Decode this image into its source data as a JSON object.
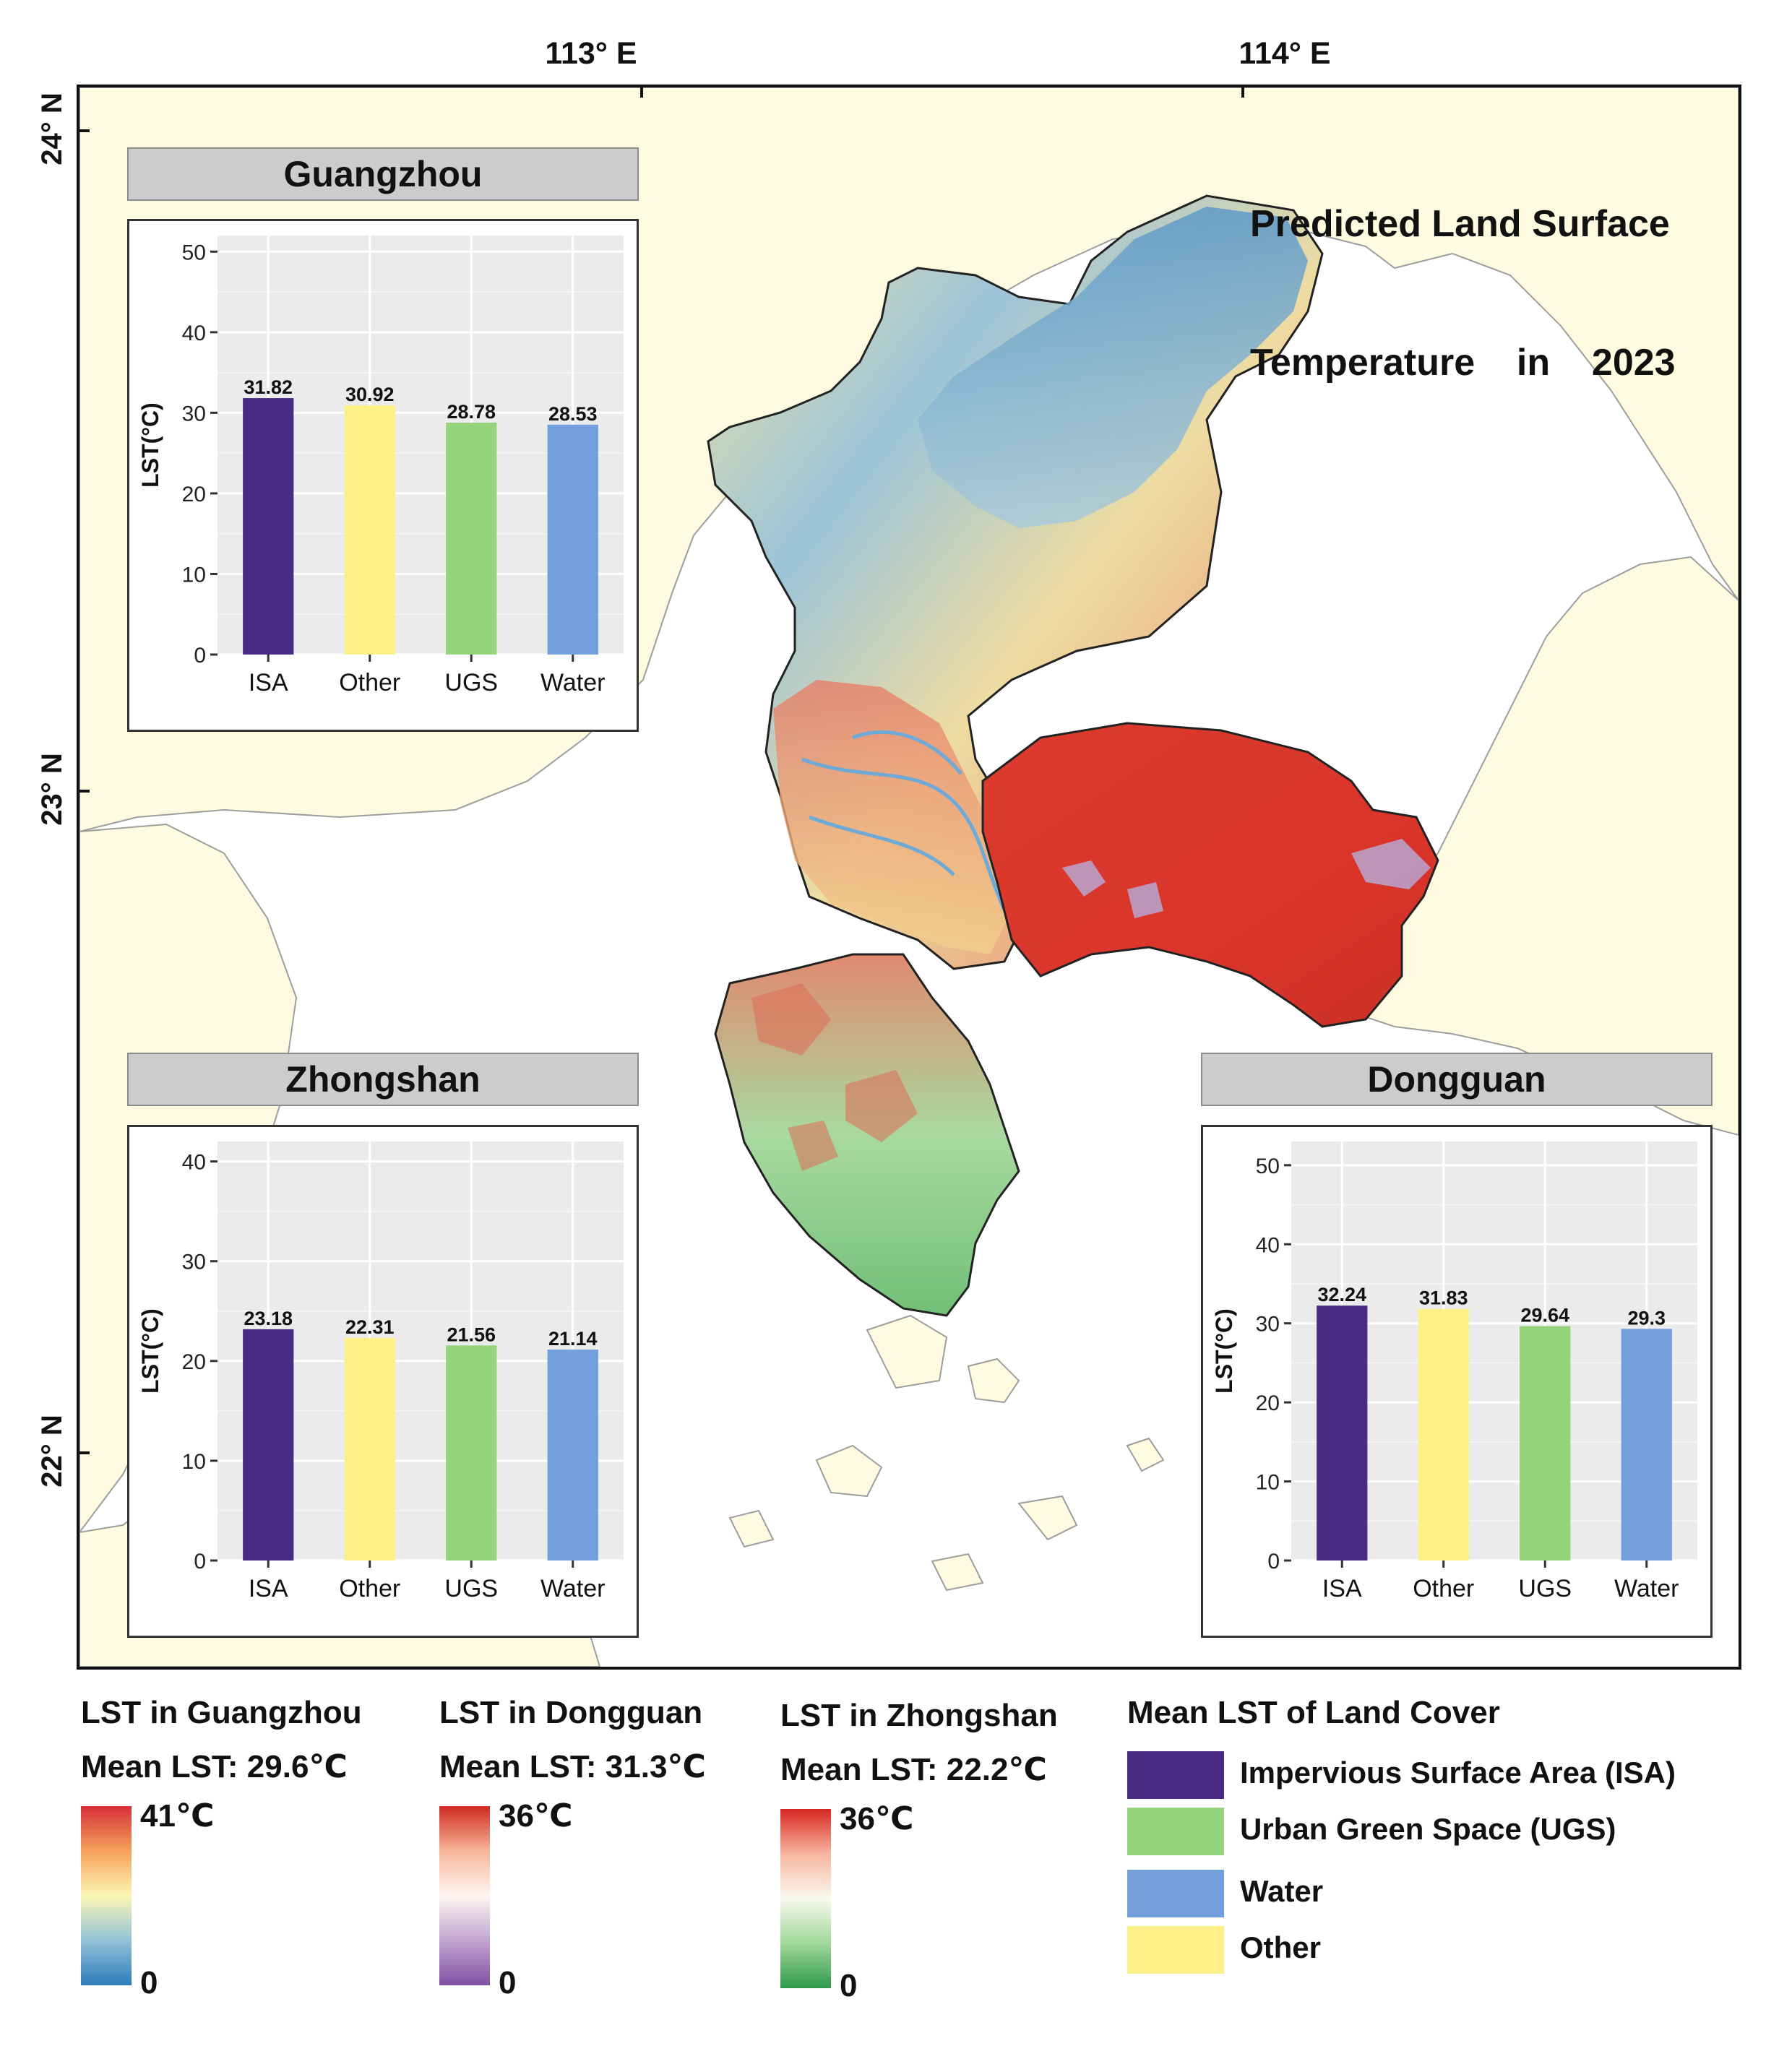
{
  "map": {
    "title_line1": "Predicted Land Surface",
    "title_line2": "Temperature    in    2023",
    "lon_labels": [
      "113° E",
      "114° E"
    ],
    "lat_labels": [
      "24° N",
      "23° N",
      "22° N"
    ],
    "colors": {
      "land": "#fffbe0",
      "sea": "#ffffff"
    }
  },
  "charts": [
    {
      "id": "guangzhou",
      "strip_title": "Guangzhou",
      "chart_data": {
        "type": "bar",
        "title": "Guangzhou",
        "categories": [
          "ISA",
          "Other",
          "UGS",
          "Water"
        ],
        "values": [
          31.82,
          30.92,
          28.78,
          28.53
        ],
        "value_labels": [
          "31.82",
          "30.92",
          "28.78",
          "28.53"
        ],
        "colors": [
          "#4b2a84",
          "#fdf088",
          "#96d47c",
          "#739fdc"
        ],
        "ylabel": "LST(°C)",
        "xlabel": "",
        "ylim": [
          0,
          52
        ],
        "yticks": [
          0,
          10,
          20,
          30,
          40,
          50
        ],
        "grid": true
      }
    },
    {
      "id": "zhongshan",
      "strip_title": "Zhongshan",
      "chart_data": {
        "type": "bar",
        "title": "Zhongshan",
        "categories": [
          "ISA",
          "Other",
          "UGS",
          "Water"
        ],
        "values": [
          23.18,
          22.31,
          21.56,
          21.14
        ],
        "value_labels": [
          "23.18",
          "22.31",
          "21.56",
          "21.14"
        ],
        "colors": [
          "#4b2a84",
          "#fdf088",
          "#96d47c",
          "#739fdc"
        ],
        "ylabel": "LST(°C)",
        "xlabel": "",
        "ylim": [
          0,
          42
        ],
        "yticks": [
          0,
          10,
          20,
          30,
          40
        ],
        "grid": true
      }
    },
    {
      "id": "dongguan",
      "strip_title": "Dongguan",
      "chart_data": {
        "type": "bar",
        "title": "Dongguan",
        "categories": [
          "ISA",
          "Other",
          "UGS",
          "Water"
        ],
        "values": [
          32.24,
          31.83,
          29.64,
          29.3
        ],
        "value_labels": [
          "32.24",
          "31.83",
          "29.64",
          "29.3"
        ],
        "colors": [
          "#4b2a84",
          "#fdf088",
          "#96d47c",
          "#739fdc"
        ],
        "ylabel": "LST(°C)",
        "xlabel": "",
        "ylim": [
          0,
          53
        ],
        "yticks": [
          0,
          10,
          20,
          30,
          40,
          50
        ],
        "grid": true
      }
    }
  ],
  "legend": {
    "guangzhou": {
      "title": "LST in Guangzhou",
      "mean": "Mean LST: 29.6℃",
      "max": "41℃",
      "min": "0",
      "ramp_colors": [
        "#d7303a",
        "#f4a15c",
        "#fcf6b4",
        "#93c3d8",
        "#2b7bba"
      ]
    },
    "dongguan": {
      "title": "LST in Dongguan",
      "mean": "Mean LST: 31.3℃",
      "max": "36℃",
      "min": "0",
      "ramp_colors": [
        "#cf2a1f",
        "#f7b59a",
        "#fff6f1",
        "#c0a4cf",
        "#8150a3"
      ]
    },
    "zhongshan": {
      "title": "LST in Zhongshan",
      "mean": "Mean LST: 22.2℃",
      "max": "36℃",
      "min": "0",
      "ramp_colors": [
        "#d6271f",
        "#f8b5a1",
        "#f9f9ee",
        "#a1d89a",
        "#2e9a4b"
      ]
    },
    "landcover": {
      "title": "Mean LST of Land Cover",
      "items": [
        {
          "label": "Impervious Surface Area (ISA)",
          "color": "#4b2a84"
        },
        {
          "label": "Urban Green Space (UGS)",
          "color": "#96d47c"
        },
        {
          "label": "Water",
          "color": "#739fdc"
        },
        {
          "label": "Other",
          "color": "#fdf088"
        }
      ]
    }
  }
}
